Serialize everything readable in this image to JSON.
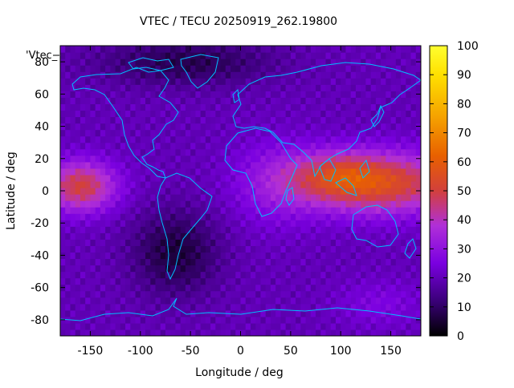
{
  "chart_data": {
    "type": "heatmap",
    "title": "VTEC / TECU 20250919_262.19800",
    "xlabel": "Longitude / deg",
    "ylabel": "Latitude / deg",
    "xlim": [
      -180,
      180
    ],
    "ylim": [
      -90,
      90
    ],
    "x_ticks": [
      -150,
      -100,
      -50,
      0,
      50,
      100,
      150
    ],
    "y_ticks": [
      -80,
      -60,
      -40,
      -20,
      0,
      20,
      40,
      60,
      80
    ],
    "colorbar": {
      "range": [
        0,
        100
      ],
      "ticks": [
        0,
        10,
        20,
        30,
        40,
        50,
        60,
        70,
        80,
        90,
        100
      ],
      "palette": [
        "#000000",
        "#3a0078",
        "#7a00e0",
        "#b02fd8",
        "#d2403c",
        "#e86000",
        "#f5a000",
        "#ffe000",
        "#ffff30"
      ]
    },
    "key_label": "'Vtec_",
    "background_level": 20,
    "features": [
      {
        "lon": 140,
        "lat": 5,
        "sx": 55,
        "sy": 13,
        "amp": 34
      },
      {
        "lon": 95,
        "lat": 10,
        "sx": 30,
        "sy": 10,
        "amp": 16
      },
      {
        "lon": -160,
        "lat": 3,
        "sx": 25,
        "sy": 11,
        "amp": 30
      },
      {
        "lon": 35,
        "lat": 5,
        "sx": 30,
        "sy": 18,
        "amp": 10
      },
      {
        "lon": -65,
        "lat": -38,
        "sx": 30,
        "sy": 18,
        "amp": -14
      },
      {
        "lon": -55,
        "lat": 80,
        "sx": 60,
        "sy": 10,
        "amp": -12
      },
      {
        "lon": 140,
        "lat": -70,
        "sx": 30,
        "sy": 10,
        "amp": 6
      }
    ]
  }
}
